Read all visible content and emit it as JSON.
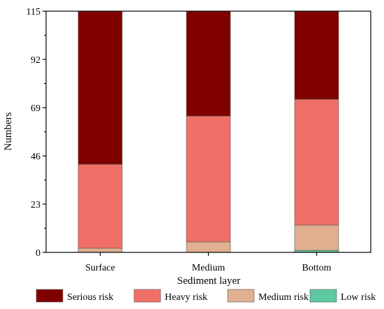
{
  "chart_data": {
    "type": "bar",
    "stacked": true,
    "categories": [
      "Surface",
      "Medium",
      "Bottom"
    ],
    "series": [
      {
        "name": "Low risk",
        "values": [
          0,
          0,
          1
        ],
        "color": "#5ec9a0"
      },
      {
        "name": "Medium risk",
        "values": [
          2,
          5,
          12
        ],
        "color": "#e0b090"
      },
      {
        "name": "Heavy risk",
        "values": [
          40,
          60,
          60
        ],
        "color": "#f07068"
      },
      {
        "name": "Serious risk",
        "values": [
          73,
          50,
          42
        ],
        "color": "#800000"
      }
    ],
    "legend_order": [
      "Serious risk",
      "Heavy risk",
      "Medium risk",
      "Low risk"
    ],
    "legend_placement": "bottom",
    "xlabel": "Sediment layer",
    "ylabel": "Numbers",
    "ylim": [
      0,
      115
    ],
    "yticks": [
      "0",
      "23",
      "46",
      "69",
      "92",
      "115"
    ],
    "grid": false
  }
}
